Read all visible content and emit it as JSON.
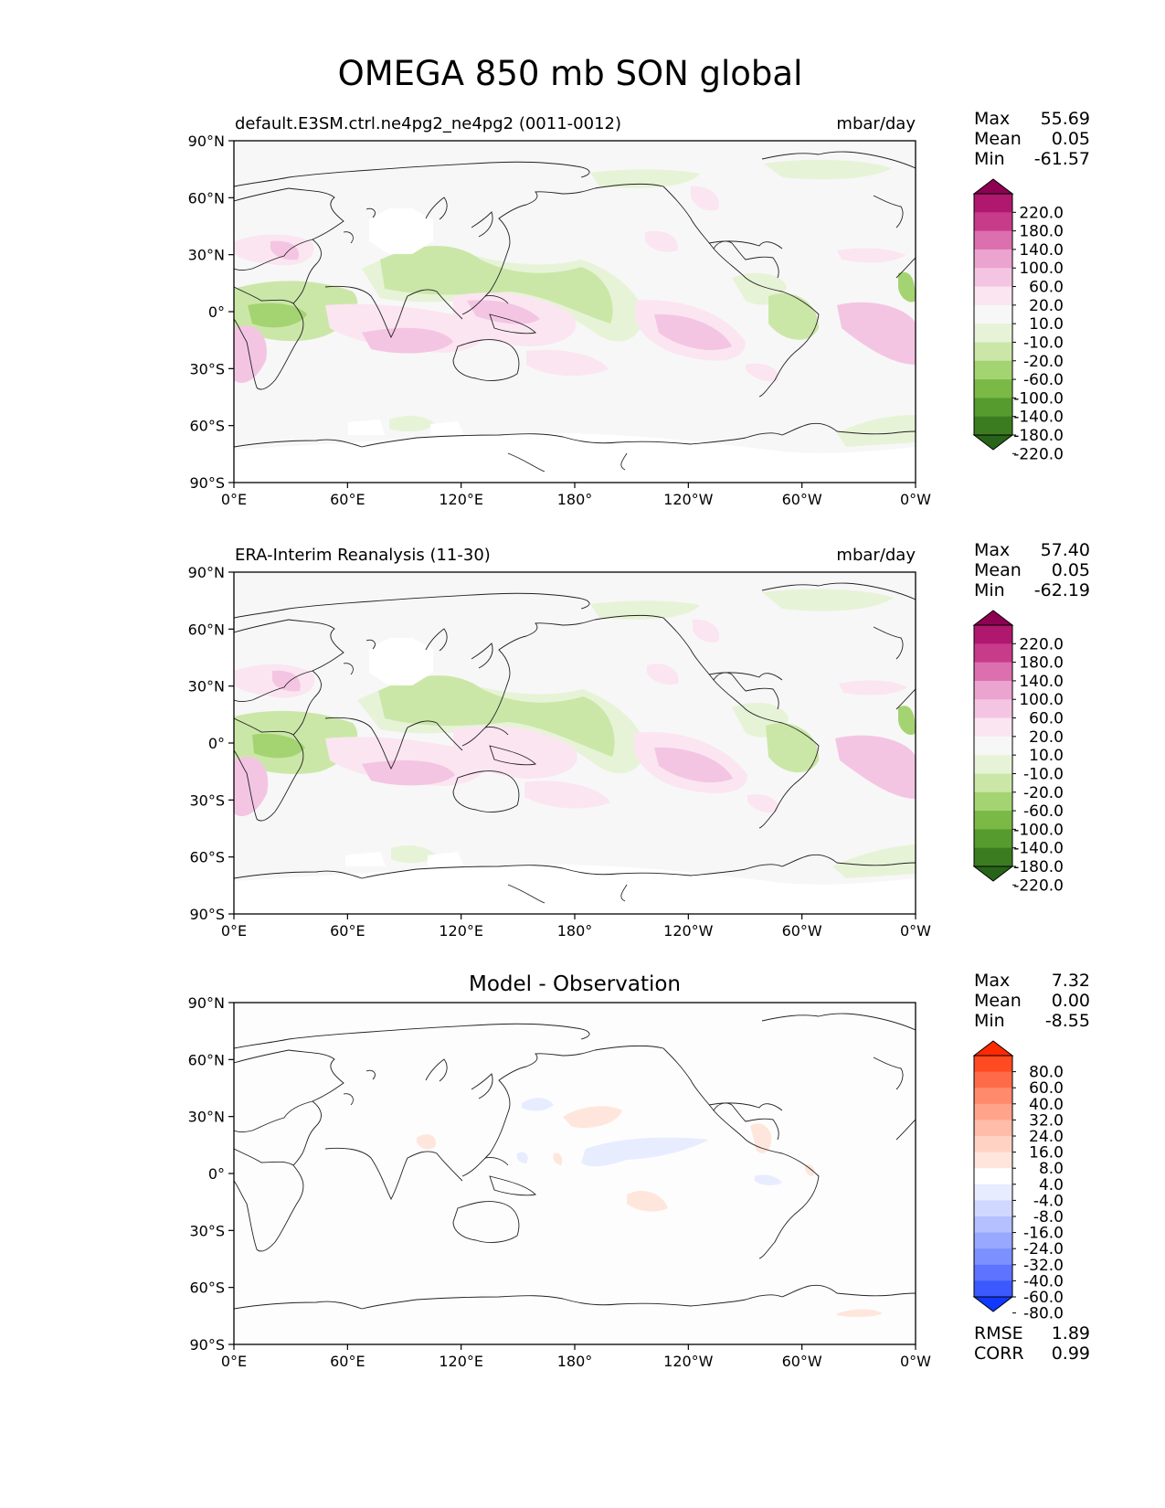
{
  "title": "OMEGA 850 mb SON global",
  "lat_ticks": [
    "90°N",
    "60°N",
    "30°N",
    "0°",
    "30°S",
    "60°S",
    "90°S"
  ],
  "lon_ticks": [
    "0°E",
    "60°E",
    "120°E",
    "180°",
    "120°W",
    "60°W",
    "0°W"
  ],
  "stat_labels": {
    "max": "Max",
    "mean": "Mean",
    "min": "Min"
  },
  "panels": [
    {
      "title_left": "default.E3SM.ctrl.ne4pg2_ne4pg2 (0011-0012)",
      "title_center": "",
      "units": "mbar/day",
      "stats": {
        "max": "55.69",
        "mean": "0.05",
        "min": "-61.57"
      },
      "colorbar": {
        "labels": [
          "220.0",
          "180.0",
          "140.0",
          "100.0",
          "60.0",
          "20.0",
          "10.0",
          "-10.0",
          "-20.0",
          "-60.0",
          "-100.0",
          "-140.0",
          "-180.0",
          "-220.0"
        ],
        "colors": [
          "#8e0152",
          "#b0176e",
          "#c83a8a",
          "#dc6fad",
          "#eba3cf",
          "#f4c5e3",
          "#fbe5f1",
          "#f7f7f7",
          "#e7f3d7",
          "#cbe7a8",
          "#a4d472",
          "#7bb947",
          "#559b2e",
          "#3b7c20",
          "#276419"
        ]
      },
      "footer": null
    },
    {
      "title_left": "ERA-Interim Reanalysis (11-30)",
      "title_center": "",
      "units": "mbar/day",
      "stats": {
        "max": "57.40",
        "mean": "0.05",
        "min": "-62.19"
      },
      "colorbar": {
        "labels": [
          "220.0",
          "180.0",
          "140.0",
          "100.0",
          "60.0",
          "20.0",
          "10.0",
          "-10.0",
          "-20.0",
          "-60.0",
          "-100.0",
          "-140.0",
          "-180.0",
          "-220.0"
        ],
        "colors": [
          "#8e0152",
          "#b0176e",
          "#c83a8a",
          "#dc6fad",
          "#eba3cf",
          "#f4c5e3",
          "#fbe5f1",
          "#f7f7f7",
          "#e7f3d7",
          "#cbe7a8",
          "#a4d472",
          "#7bb947",
          "#559b2e",
          "#3b7c20",
          "#276419"
        ]
      },
      "footer": null
    },
    {
      "title_left": "",
      "title_center": "Model - Observation",
      "units": "",
      "stats": {
        "max": "7.32",
        "mean": "0.00",
        "min": "-8.55"
      },
      "colorbar": {
        "labels": [
          "80.0",
          "60.0",
          "40.0",
          "32.0",
          "24.0",
          "16.0",
          "8.0",
          "4.0",
          "-4.0",
          "-8.0",
          "-16.0",
          "-24.0",
          "-32.0",
          "-40.0",
          "-60.0",
          "-80.0"
        ],
        "colors": [
          "#ff2a00",
          "#ff4a22",
          "#ff6a48",
          "#ff8a6c",
          "#ffa48a",
          "#ffbca8",
          "#ffd2c4",
          "#ffe6dc",
          "#ffffff",
          "#e8ecff",
          "#d0d8ff",
          "#b4c0ff",
          "#98a8ff",
          "#7c90ff",
          "#5c74ff",
          "#3c58ff",
          "#1038ff"
        ]
      },
      "footer": {
        "rmse_label": "RMSE",
        "rmse": "1.89",
        "corr_label": "CORR",
        "corr": "0.99"
      }
    }
  ]
}
